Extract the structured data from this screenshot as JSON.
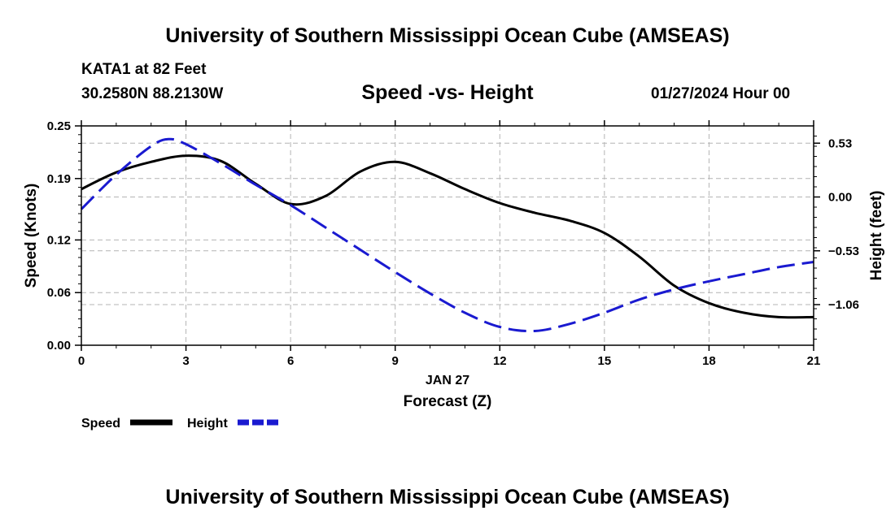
{
  "header": {
    "title": "University of Southern Mississippi Ocean Cube (AMSEAS)",
    "station": "KATA1 at 82 Feet",
    "coords": "30.2580N  88.2130W",
    "chart_title": "Speed -vs- Height",
    "datetime": "01/27/2024 Hour 00"
  },
  "footer": {
    "title": "University of Southern Mississippi Ocean Cube (AMSEAS)"
  },
  "colors": {
    "speed": "#000000",
    "height": "#1a1ad0",
    "grid": "#b4b4b4"
  },
  "chart_data": {
    "type": "line",
    "title": "Speed -vs- Height",
    "xlabel": "Forecast (Z)",
    "xdate_label": "JAN 27",
    "ylabel_left": "Speed (Knots)",
    "ylabel_right": "Height (feet)",
    "xlim": [
      0,
      21
    ],
    "ylim_left": [
      0,
      0.25
    ],
    "ylim_right": [
      -1.46,
      0.7
    ],
    "x_ticks": [
      0,
      3,
      6,
      9,
      12,
      15,
      18,
      21
    ],
    "x_tick_labels": [
      "0",
      "3",
      "6",
      "9",
      "12",
      "15",
      "18",
      "21"
    ],
    "y_left_ticks": [
      0.0,
      0.06,
      0.12,
      0.19,
      0.25
    ],
    "y_left_tick_labels": [
      "0.00",
      "0.06",
      "0.12",
      "0.19",
      "0.25"
    ],
    "y_right_ticks": [
      0.53,
      0.0,
      -0.53,
      -1.06
    ],
    "y_right_tick_labels": [
      "0.53",
      "0.00",
      "−0.53",
      "−1.06"
    ],
    "grid": true,
    "series": [
      {
        "name": "Speed",
        "axis": "left",
        "style": "solid",
        "x": [
          0,
          1,
          2,
          3,
          4,
          5,
          6,
          7,
          8,
          9,
          10,
          11,
          12,
          13,
          14,
          15,
          16,
          17,
          18,
          19,
          20,
          21
        ],
        "values": [
          0.178,
          0.197,
          0.209,
          0.216,
          0.21,
          0.184,
          0.161,
          0.17,
          0.198,
          0.209,
          0.196,
          0.178,
          0.162,
          0.151,
          0.142,
          0.128,
          0.101,
          0.068,
          0.048,
          0.037,
          0.032,
          0.032
        ]
      },
      {
        "name": "Height",
        "axis": "right",
        "style": "dashed",
        "x": [
          0,
          1,
          2,
          2.5,
          3,
          4,
          5,
          6,
          7,
          8,
          9,
          10,
          11,
          12,
          13,
          14,
          15,
          16,
          17,
          18,
          19,
          20,
          21
        ],
        "values": [
          -0.12,
          0.22,
          0.5,
          0.57,
          0.52,
          0.33,
          0.12,
          -0.08,
          -0.3,
          -0.52,
          -0.74,
          -0.95,
          -1.14,
          -1.28,
          -1.32,
          -1.25,
          -1.14,
          -1.01,
          -0.91,
          -0.83,
          -0.76,
          -0.69,
          -0.64
        ]
      }
    ],
    "legend": {
      "position": "bottom-left",
      "entries": [
        "Speed",
        "Height"
      ]
    }
  }
}
